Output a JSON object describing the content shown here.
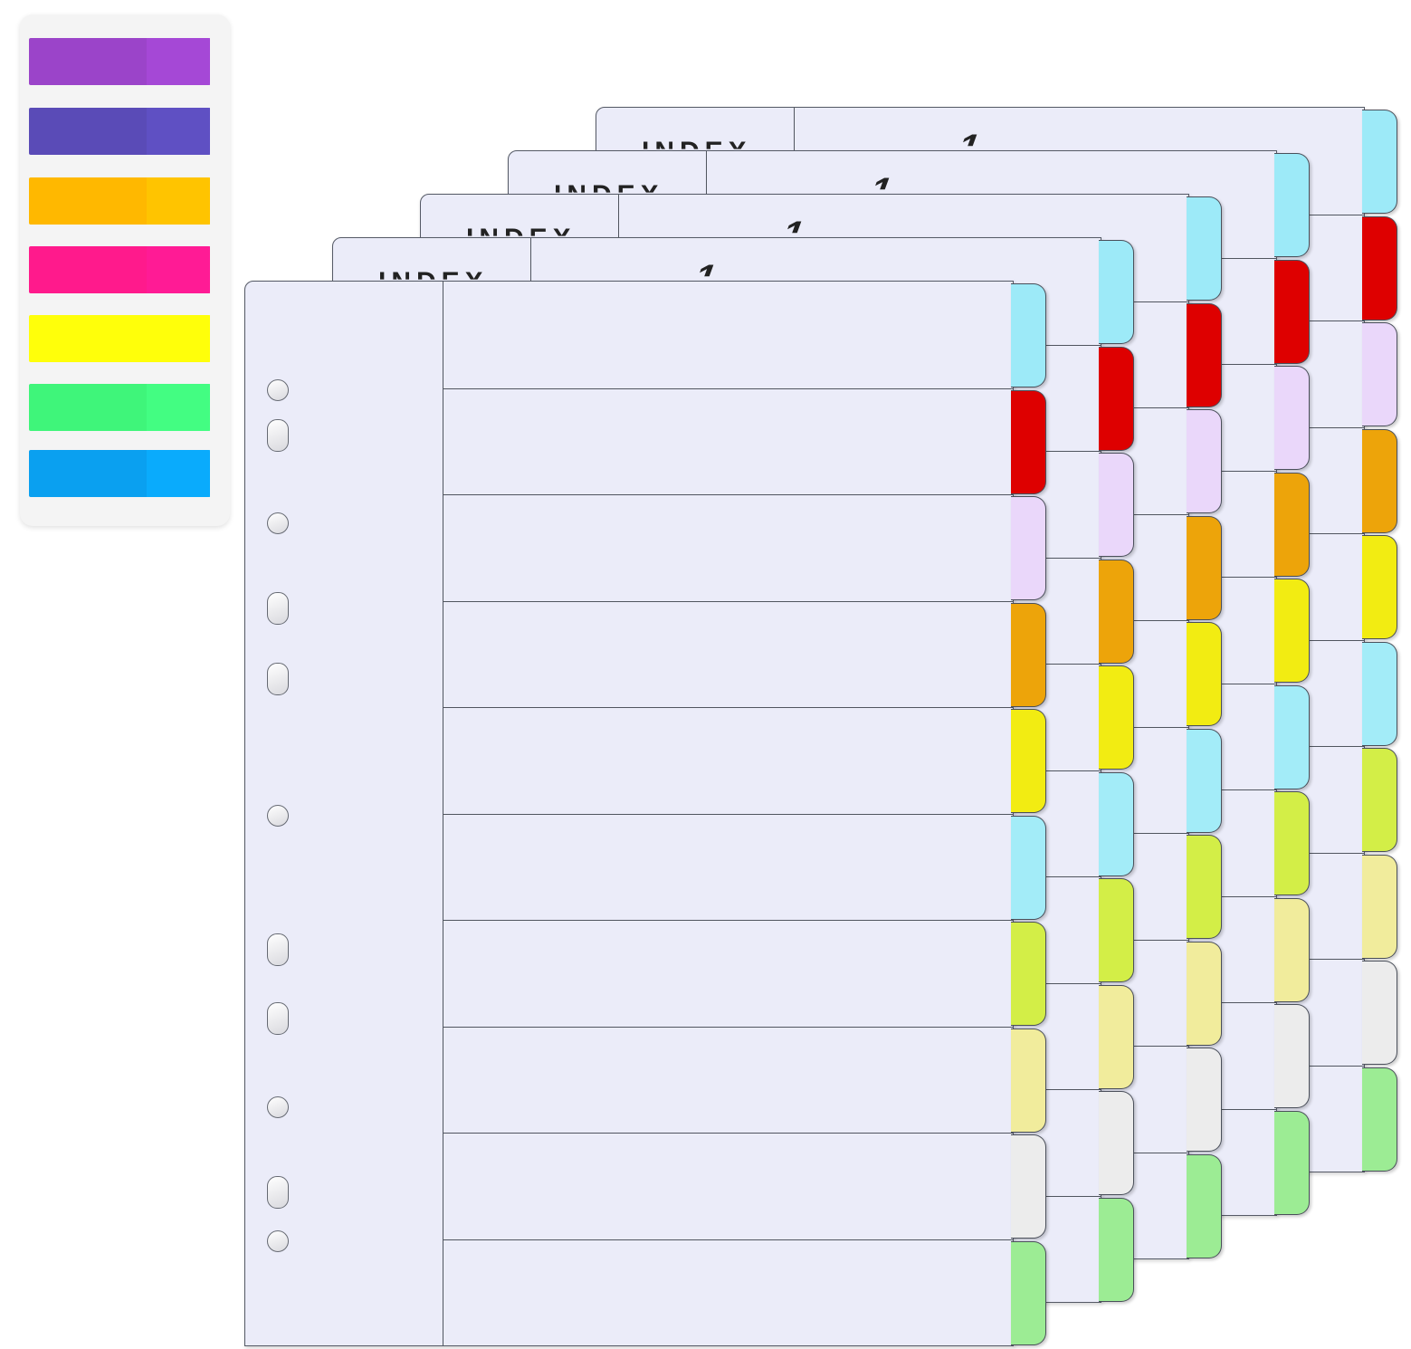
{
  "scene": {
    "description": "Index divider sheets with colored tabs and sticky flag pack",
    "background": "#ffffff"
  },
  "flag_pack": {
    "flags": [
      {
        "name": "purple",
        "color": "#9b44c9"
      },
      {
        "name": "indigo",
        "color": "#5a4bb7"
      },
      {
        "name": "orange",
        "color": "#ffb800"
      },
      {
        "name": "pink",
        "color": "#ff1a8c"
      },
      {
        "name": "yellow",
        "color": "#ffff0a"
      },
      {
        "name": "green",
        "color": "#3ff57a"
      },
      {
        "name": "blue",
        "color": "#0aa0f0"
      }
    ]
  },
  "divider_sheets": {
    "count": 5,
    "header_label": "INDEX",
    "header_number": "1",
    "tab_colors": [
      {
        "name": "sky-blue",
        "color": "#9deaf8"
      },
      {
        "name": "red",
        "color": "#de0000"
      },
      {
        "name": "lavender",
        "color": "#ead7fa"
      },
      {
        "name": "orange",
        "color": "#eda40a"
      },
      {
        "name": "yellow",
        "color": "#f2ec12"
      },
      {
        "name": "light-blue",
        "color": "#a3ecf8"
      },
      {
        "name": "lime",
        "color": "#d3ee47"
      },
      {
        "name": "pale-yellow",
        "color": "#f1ec9c"
      },
      {
        "name": "light-gray",
        "color": "#ececec"
      },
      {
        "name": "green",
        "color": "#9cec94"
      }
    ]
  }
}
